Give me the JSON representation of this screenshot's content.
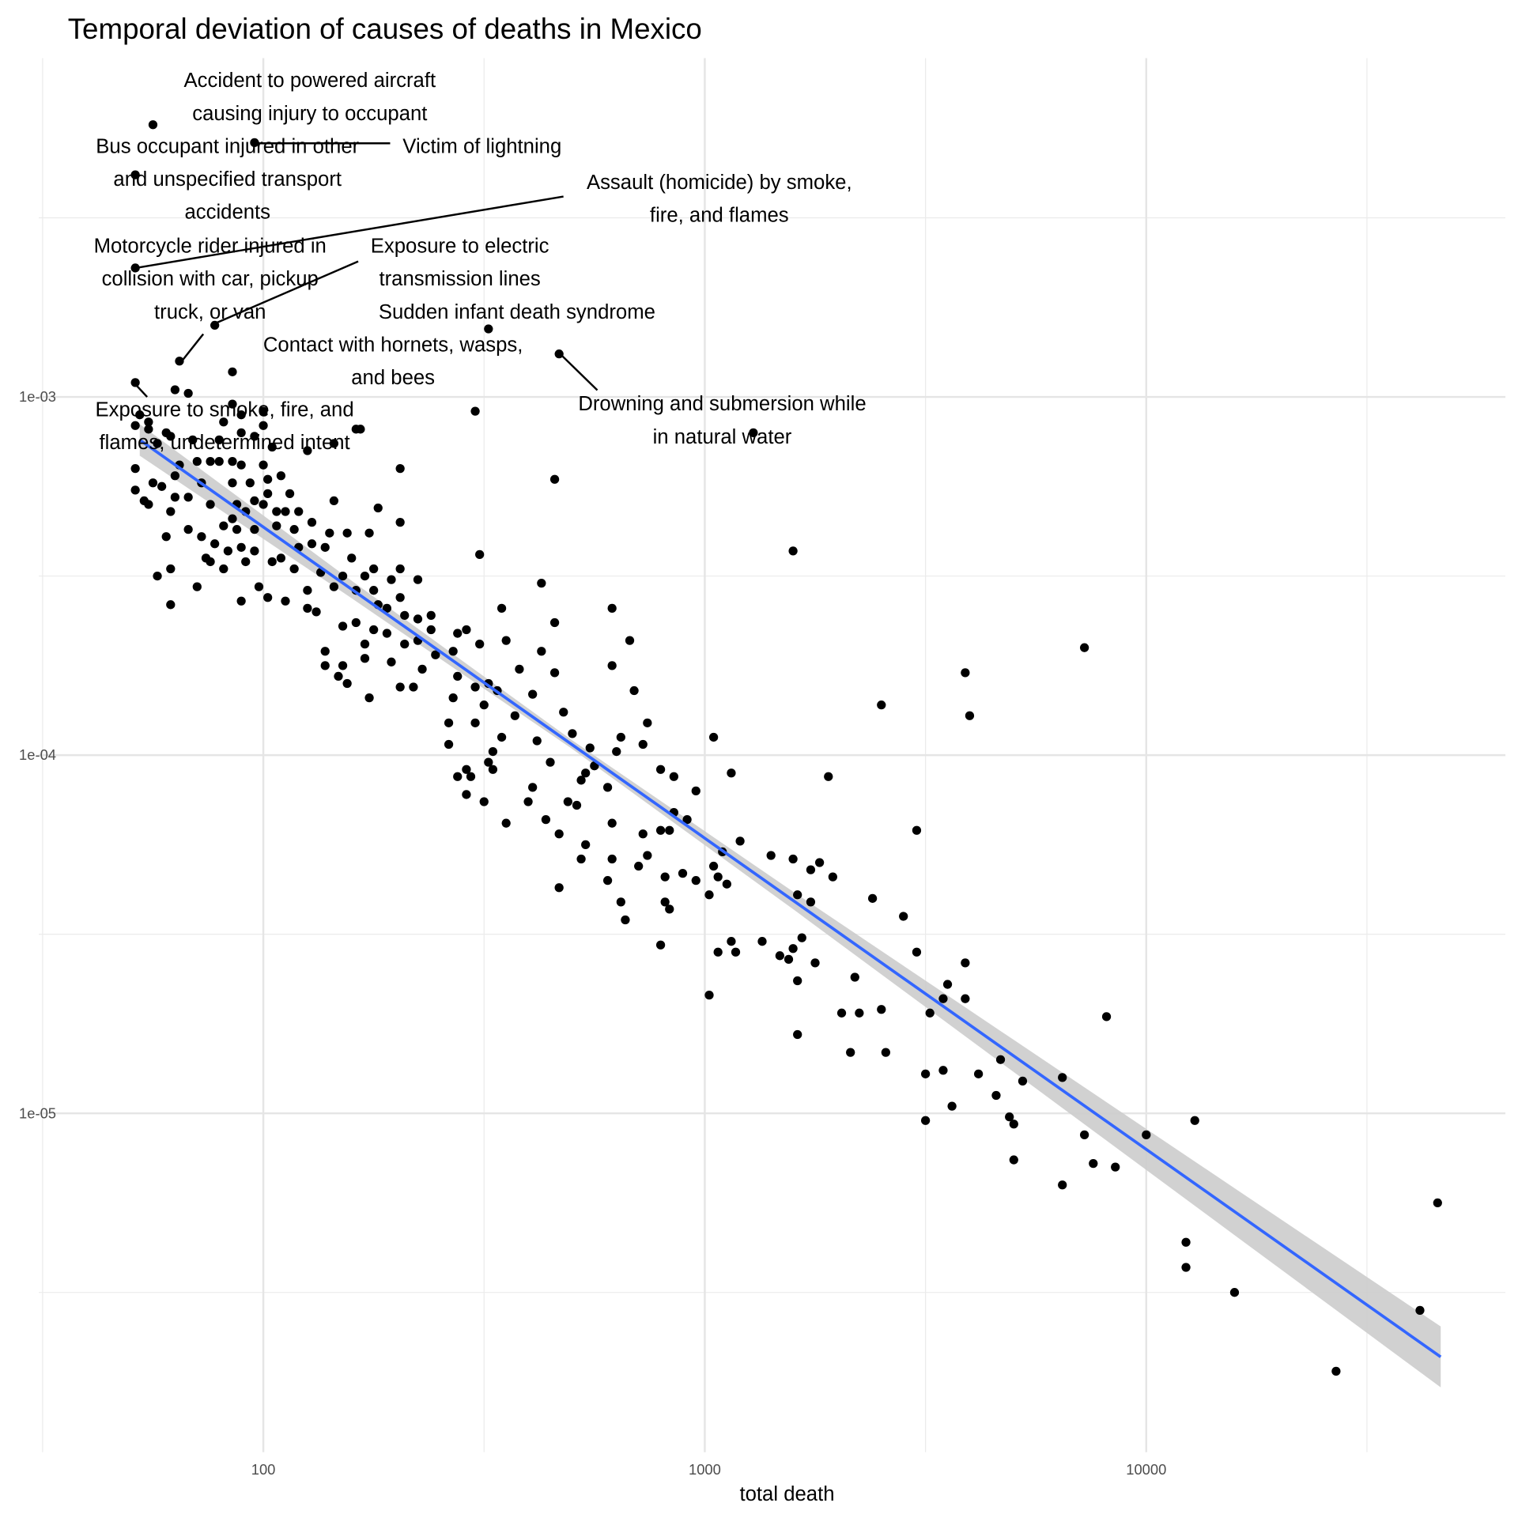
{
  "chart_data": {
    "type": "scatter",
    "title": "Temporal deviation of causes of deaths in Mexico",
    "xlabel": "total death",
    "ylabel": "",
    "x_scale": "log10",
    "y_scale": "log10",
    "x_ticks": [
      {
        "value": 100,
        "label": "100"
      },
      {
        "value": 1000,
        "label": "1000"
      },
      {
        "value": 10000,
        "label": "10000"
      }
    ],
    "y_ticks": [
      {
        "value": 0.001,
        "label": "1e-03"
      },
      {
        "value": 0.0001,
        "label": "1e-04"
      },
      {
        "value": 1e-05,
        "label": "1e-05"
      }
    ],
    "xlim_log10": [
      1.49,
      4.81
    ],
    "ylim_log10": [
      -5.95,
      -2.05
    ],
    "grid": true,
    "point_color": "#000000",
    "fit_color": "#3366ff",
    "band_color": "#cccccc",
    "points_note": "points are [log10(total death), log10(deviation)]",
    "points": [
      [
        1.75,
        -2.24
      ],
      [
        1.98,
        -2.29
      ],
      [
        1.71,
        -2.38
      ],
      [
        1.71,
        -2.64
      ],
      [
        1.89,
        -2.8
      ],
      [
        1.81,
        -2.9
      ],
      [
        2.51,
        -2.81
      ],
      [
        2.67,
        -2.88
      ],
      [
        1.71,
        -2.96
      ],
      [
        1.93,
        -2.93
      ],
      [
        1.8,
        -2.98
      ],
      [
        1.83,
        -2.99
      ],
      [
        1.72,
        -3.05
      ],
      [
        1.74,
        -3.07
      ],
      [
        1.71,
        -3.08
      ],
      [
        1.79,
        -3.11
      ],
      [
        1.76,
        -3.13
      ],
      [
        1.78,
        -3.1
      ],
      [
        1.74,
        -3.09
      ],
      [
        1.91,
        -3.07
      ],
      [
        1.93,
        -3.02
      ],
      [
        1.95,
        -3.05
      ],
      [
        2.0,
        -3.04
      ],
      [
        2.0,
        -3.08
      ],
      [
        1.95,
        -3.1
      ],
      [
        1.9,
        -3.12
      ],
      [
        1.98,
        -3.11
      ],
      [
        1.84,
        -3.12
      ],
      [
        1.85,
        -3.18
      ],
      [
        1.81,
        -3.19
      ],
      [
        1.88,
        -3.18
      ],
      [
        1.9,
        -3.18
      ],
      [
        1.93,
        -3.18
      ],
      [
        1.95,
        -3.19
      ],
      [
        2.0,
        -3.19
      ],
      [
        2.01,
        -3.23
      ],
      [
        2.04,
        -3.22
      ],
      [
        2.1,
        -3.15
      ],
      [
        2.16,
        -3.13
      ],
      [
        2.21,
        -3.09
      ],
      [
        2.31,
        -3.2
      ],
      [
        1.97,
        -3.24
      ],
      [
        1.93,
        -3.24
      ],
      [
        1.86,
        -3.24
      ],
      [
        1.8,
        -3.22
      ],
      [
        1.77,
        -3.25
      ],
      [
        1.71,
        -3.26
      ],
      [
        1.73,
        -3.29
      ],
      [
        1.74,
        -3.3
      ],
      [
        1.8,
        -3.28
      ],
      [
        1.83,
        -3.28
      ],
      [
        1.88,
        -3.3
      ],
      [
        1.94,
        -3.3
      ],
      [
        1.98,
        -3.29
      ],
      [
        2.01,
        -3.27
      ],
      [
        2.06,
        -3.27
      ],
      [
        2.05,
        -3.32
      ],
      [
        2.08,
        -3.32
      ],
      [
        2.03,
        -3.32
      ],
      [
        2.0,
        -3.3
      ],
      [
        1.96,
        -3.32
      ],
      [
        1.93,
        -3.34
      ],
      [
        1.91,
        -3.36
      ],
      [
        1.94,
        -3.37
      ],
      [
        1.98,
        -3.37
      ],
      [
        2.03,
        -3.36
      ],
      [
        2.07,
        -3.37
      ],
      [
        2.11,
        -3.35
      ],
      [
        2.16,
        -3.29
      ],
      [
        1.71,
        -3.2
      ],
      [
        1.75,
        -3.24
      ],
      [
        1.79,
        -3.32
      ],
      [
        1.78,
        -3.39
      ],
      [
        1.83,
        -3.37
      ],
      [
        1.86,
        -3.39
      ],
      [
        1.89,
        -3.41
      ],
      [
        1.87,
        -3.45
      ],
      [
        1.92,
        -3.43
      ],
      [
        1.95,
        -3.42
      ],
      [
        1.98,
        -3.43
      ],
      [
        2.02,
        -3.46
      ],
      [
        2.04,
        -3.45
      ],
      [
        2.08,
        -3.42
      ],
      [
        2.11,
        -3.41
      ],
      [
        2.14,
        -3.42
      ],
      [
        2.15,
        -3.38
      ],
      [
        2.19,
        -3.38
      ],
      [
        2.24,
        -3.38
      ],
      [
        2.26,
        -3.31
      ],
      [
        2.31,
        -3.35
      ],
      [
        1.96,
        -3.46
      ],
      [
        1.91,
        -3.48
      ],
      [
        1.88,
        -3.46
      ],
      [
        1.85,
        -3.53
      ],
      [
        1.79,
        -3.48
      ],
      [
        1.76,
        -3.5
      ],
      [
        1.79,
        -3.58
      ],
      [
        1.95,
        -3.57
      ],
      [
        1.99,
        -3.53
      ],
      [
        2.01,
        -3.56
      ],
      [
        2.05,
        -3.57
      ],
      [
        2.1,
        -3.59
      ],
      [
        2.12,
        -3.6
      ],
      [
        2.1,
        -3.54
      ],
      [
        2.07,
        -3.48
      ],
      [
        2.13,
        -3.49
      ],
      [
        2.16,
        -3.53
      ],
      [
        2.18,
        -3.5
      ],
      [
        2.2,
        -3.45
      ],
      [
        2.25,
        -3.48
      ],
      [
        2.23,
        -3.5
      ],
      [
        2.21,
        -3.54
      ],
      [
        2.25,
        -3.54
      ],
      [
        2.29,
        -3.51
      ],
      [
        2.31,
        -3.48
      ],
      [
        2.35,
        -3.51
      ],
      [
        2.31,
        -3.56
      ],
      [
        2.26,
        -3.58
      ],
      [
        2.28,
        -3.59
      ],
      [
        2.32,
        -3.61
      ],
      [
        2.35,
        -3.62
      ],
      [
        2.38,
        -3.61
      ],
      [
        2.38,
        -3.65
      ],
      [
        2.35,
        -3.68
      ],
      [
        2.32,
        -3.69
      ],
      [
        2.28,
        -3.66
      ],
      [
        2.25,
        -3.65
      ],
      [
        2.21,
        -3.63
      ],
      [
        2.23,
        -3.69
      ],
      [
        2.18,
        -3.64
      ],
      [
        2.14,
        -3.71
      ],
      [
        2.14,
        -3.75
      ],
      [
        2.18,
        -3.75
      ],
      [
        2.19,
        -3.8
      ],
      [
        2.17,
        -3.78
      ],
      [
        2.23,
        -3.73
      ],
      [
        2.24,
        -3.84
      ],
      [
        2.29,
        -3.74
      ],
      [
        2.31,
        -3.81
      ],
      [
        2.34,
        -3.81
      ],
      [
        2.36,
        -3.76
      ],
      [
        2.39,
        -3.72
      ],
      [
        2.44,
        -3.66
      ],
      [
        2.43,
        -3.71
      ],
      [
        2.46,
        -3.65
      ],
      [
        2.49,
        -3.69
      ],
      [
        2.54,
        -3.59
      ],
      [
        2.55,
        -3.68
      ],
      [
        2.49,
        -3.44
      ],
      [
        2.44,
        -3.78
      ],
      [
        2.43,
        -3.84
      ],
      [
        2.48,
        -3.81
      ],
      [
        2.51,
        -3.8
      ],
      [
        2.53,
        -3.82
      ],
      [
        2.5,
        -3.86
      ],
      [
        2.48,
        -3.91
      ],
      [
        2.42,
        -3.91
      ],
      [
        2.42,
        -3.97
      ],
      [
        2.44,
        -4.06
      ],
      [
        2.47,
        -4.06
      ],
      [
        2.51,
        -4.02
      ],
      [
        2.52,
        -3.99
      ],
      [
        2.52,
        -4.04
      ],
      [
        2.54,
        -3.95
      ],
      [
        2.57,
        -3.89
      ],
      [
        2.58,
        -3.76
      ],
      [
        2.63,
        -3.71
      ],
      [
        2.61,
        -3.83
      ],
      [
        2.62,
        -3.96
      ],
      [
        2.65,
        -4.02
      ],
      [
        2.68,
        -3.88
      ],
      [
        2.66,
        -3.77
      ],
      [
        2.63,
        -3.52
      ],
      [
        2.66,
        -3.63
      ],
      [
        2.66,
        -3.23
      ],
      [
        2.79,
        -3.59
      ],
      [
        2.79,
        -3.75
      ],
      [
        2.83,
        -3.68
      ],
      [
        2.84,
        -3.82
      ],
      [
        2.87,
        -3.91
      ],
      [
        2.86,
        -3.97
      ],
      [
        2.81,
        -3.95
      ],
      [
        2.8,
        -3.99
      ],
      [
        2.74,
        -3.98
      ],
      [
        2.73,
        -4.05
      ],
      [
        2.7,
        -3.94
      ],
      [
        2.69,
        -4.13
      ],
      [
        2.72,
        -4.07
      ],
      [
        2.75,
        -4.03
      ],
      [
        2.78,
        -4.09
      ],
      [
        2.71,
        -4.14
      ],
      [
        2.67,
        -4.22
      ],
      [
        2.64,
        -4.18
      ],
      [
        2.6,
        -4.13
      ],
      [
        2.61,
        -4.09
      ],
      [
        2.55,
        -4.19
      ],
      [
        2.5,
        -4.13
      ],
      [
        2.46,
        -4.11
      ],
      [
        2.46,
        -4.04
      ],
      [
        2.67,
        -4.37
      ],
      [
        2.73,
        -4.25
      ],
      [
        2.72,
        -4.29
      ],
      [
        2.78,
        -4.35
      ],
      [
        2.81,
        -4.41
      ],
      [
        2.82,
        -4.46
      ],
      [
        2.79,
        -4.29
      ],
      [
        2.79,
        -4.19
      ],
      [
        2.85,
        -4.31
      ],
      [
        2.87,
        -4.28
      ],
      [
        2.91,
        -4.34
      ],
      [
        2.91,
        -4.41
      ],
      [
        2.92,
        -4.43
      ],
      [
        2.9,
        -4.53
      ],
      [
        2.95,
        -4.33
      ],
      [
        2.98,
        -4.1
      ],
      [
        2.93,
        -4.06
      ],
      [
        2.9,
        -4.04
      ],
      [
        2.86,
        -4.22
      ],
      [
        2.9,
        -4.21
      ],
      [
        2.92,
        -4.21
      ],
      [
        2.93,
        -4.16
      ],
      [
        2.96,
        -4.18
      ],
      [
        3.02,
        -3.95
      ],
      [
        3.06,
        -4.05
      ],
      [
        3.08,
        -4.24
      ],
      [
        3.04,
        -4.27
      ],
      [
        3.02,
        -4.31
      ],
      [
        3.03,
        -4.34
      ],
      [
        2.98,
        -4.35
      ],
      [
        3.01,
        -4.39
      ],
      [
        3.05,
        -4.36
      ],
      [
        3.03,
        -4.55
      ],
      [
        3.01,
        -4.67
      ],
      [
        3.06,
        -4.52
      ],
      [
        3.07,
        -4.55
      ],
      [
        3.13,
        -4.52
      ],
      [
        3.15,
        -4.28
      ],
      [
        3.21,
        -4.39
      ],
      [
        3.2,
        -4.29
      ],
      [
        3.24,
        -4.32
      ],
      [
        3.26,
        -4.3
      ],
      [
        3.29,
        -4.34
      ],
      [
        3.24,
        -4.41
      ],
      [
        3.28,
        -4.06
      ],
      [
        3.17,
        -4.56
      ],
      [
        3.19,
        -4.57
      ],
      [
        3.22,
        -4.51
      ],
      [
        3.2,
        -4.54
      ],
      [
        3.21,
        -4.63
      ],
      [
        3.25,
        -4.58
      ],
      [
        3.21,
        -4.78
      ],
      [
        3.38,
        -4.4
      ],
      [
        3.34,
        -4.62
      ],
      [
        3.31,
        -4.72
      ],
      [
        3.35,
        -4.72
      ],
      [
        3.33,
        -4.83
      ],
      [
        3.41,
        -4.83
      ],
      [
        3.4,
        -4.71
      ],
      [
        3.45,
        -4.45
      ],
      [
        3.48,
        -4.21
      ],
      [
        3.48,
        -4.55
      ],
      [
        3.4,
        -3.86
      ],
      [
        3.5,
        -4.89
      ],
      [
        3.5,
        -5.02
      ],
      [
        3.51,
        -4.72
      ],
      [
        3.54,
        -4.68
      ],
      [
        3.54,
        -4.88
      ],
      [
        3.55,
        -4.64
      ],
      [
        3.56,
        -4.98
      ],
      [
        3.59,
        -3.77
      ],
      [
        3.6,
        -3.89
      ],
      [
        3.59,
        -4.58
      ],
      [
        3.59,
        -4.68
      ],
      [
        3.62,
        -4.89
      ],
      [
        3.66,
        -4.95
      ],
      [
        3.67,
        -4.85
      ],
      [
        3.69,
        -5.01
      ],
      [
        3.7,
        -5.03
      ],
      [
        3.7,
        -5.13
      ],
      [
        3.72,
        -4.91
      ],
      [
        3.81,
        -4.9
      ],
      [
        3.81,
        -5.2
      ],
      [
        3.86,
        -3.7
      ],
      [
        3.86,
        -5.06
      ],
      [
        3.88,
        -5.14
      ],
      [
        3.93,
        -5.15
      ],
      [
        3.91,
        -4.73
      ],
      [
        4.0,
        -5.06
      ],
      [
        4.11,
        -5.02
      ],
      [
        4.09,
        -5.36
      ],
      [
        4.09,
        -5.43
      ],
      [
        4.2,
        -5.5
      ],
      [
        4.43,
        -5.72
      ],
      [
        4.62,
        -5.55
      ],
      [
        4.66,
        -5.25
      ],
      [
        3.2,
        -3.43
      ],
      [
        3.11,
        -3.1
      ],
      [
        2.48,
        -3.04
      ],
      [
        2.22,
        -3.09
      ],
      [
        2.02,
        -3.14
      ]
    ],
    "fit_line_log10": {
      "x": [
        1.72,
        4.667
      ],
      "y": [
        -3.12,
        -5.68
      ]
    },
    "ci_band_log10": [
      [
        1.72,
        -3.164,
        -3.076
      ],
      [
        2.2,
        -3.562,
        -3.513
      ],
      [
        2.7,
        -3.983,
        -3.959
      ],
      [
        3.2,
        -4.43,
        -4.381
      ],
      [
        3.7,
        -4.885,
        -4.795
      ],
      [
        4.2,
        -5.34,
        -5.209
      ],
      [
        4.667,
        -5.765,
        -5.595
      ]
    ],
    "annotations": [
      {
        "lines": [
          "Accident to powered aircraft",
          "causing injury to occupant"
        ]
      },
      {
        "lines": [
          "Bus occupant injured in other",
          "and unspecified transport",
          "accidents"
        ]
      },
      {
        "lines": [
          "Victim of lightning"
        ]
      },
      {
        "lines": [
          "Assault (homicide) by smoke,",
          "fire, and flames"
        ]
      },
      {
        "lines": [
          "Motorcycle rider injured in",
          "collision with car, pickup",
          "truck, or van"
        ]
      },
      {
        "lines": [
          "Exposure to electric",
          "transmission lines"
        ]
      },
      {
        "lines": [
          "Sudden infant death syndrome"
        ]
      },
      {
        "lines": [
          "Contact with hornets, wasps,",
          "and bees"
        ]
      },
      {
        "lines": [
          "Drowning and submersion while",
          "in natural water"
        ]
      },
      {
        "lines": [
          "Exposure to smoke, fire, and",
          "flames, undetermined intent"
        ]
      }
    ]
  }
}
